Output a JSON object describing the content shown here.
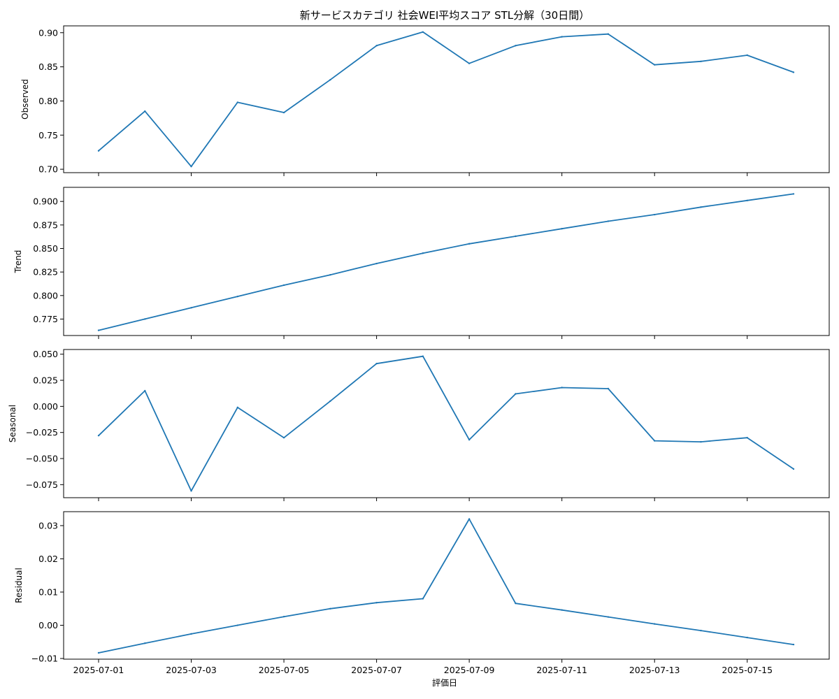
{
  "title": "新サービスカテゴリ 社会WEI平均スコア STL分解（30日間）",
  "xlabel": "評価日",
  "line_color": "#1f77b4",
  "chart_data": {
    "type": "line",
    "title": "新サービスカテゴリ 社会WEI平均スコア STL分解（30日間）",
    "xlabel": "評価日",
    "x": [
      "2025-07-01",
      "2025-07-02",
      "2025-07-03",
      "2025-07-04",
      "2025-07-05",
      "2025-07-06",
      "2025-07-07",
      "2025-07-08",
      "2025-07-09",
      "2025-07-10",
      "2025-07-11",
      "2025-07-12",
      "2025-07-13",
      "2025-07-14",
      "2025-07-15",
      "2025-07-16"
    ],
    "x_tick_labels": [
      "2025-07-01",
      "2025-07-03",
      "2025-07-05",
      "2025-07-07",
      "2025-07-09",
      "2025-07-11",
      "2025-07-13",
      "2025-07-15"
    ],
    "grid": false,
    "panels": [
      {
        "ylabel": "Observed",
        "ylim": [
          0.695,
          0.91
        ],
        "yticks": [
          0.7,
          0.75,
          0.8,
          0.85,
          0.9
        ],
        "ytick_labels": [
          "0.70",
          "0.75",
          "0.80",
          "0.85",
          "0.90"
        ],
        "values": [
          0.727,
          0.785,
          0.704,
          0.798,
          0.783,
          0.831,
          0.881,
          0.901,
          0.855,
          0.881,
          0.894,
          0.898,
          0.853,
          0.858,
          0.867,
          0.842
        ]
      },
      {
        "ylabel": "Trend",
        "ylim": [
          0.7575,
          0.915
        ],
        "yticks": [
          0.775,
          0.8,
          0.825,
          0.85,
          0.875,
          0.9
        ],
        "ytick_labels": [
          "0.775",
          "0.800",
          "0.825",
          "0.850",
          "0.875",
          "0.900"
        ],
        "values": [
          0.763,
          0.775,
          0.787,
          0.799,
          0.811,
          0.822,
          0.834,
          0.845,
          0.855,
          0.863,
          0.871,
          0.879,
          0.886,
          0.894,
          0.901,
          0.908
        ]
      },
      {
        "ylabel": "Seasonal",
        "ylim": [
          -0.0875,
          0.0545
        ],
        "yticks": [
          -0.075,
          -0.05,
          -0.025,
          0.0,
          0.025,
          0.05
        ],
        "ytick_labels": [
          "−0.075",
          "−0.050",
          "−0.025",
          "0.000",
          "0.025",
          "0.050"
        ],
        "values": [
          -0.028,
          0.015,
          -0.081,
          -0.001,
          -0.03,
          0.005,
          0.041,
          0.048,
          -0.032,
          0.012,
          0.018,
          0.017,
          -0.033,
          -0.034,
          -0.03,
          -0.06
        ]
      },
      {
        "ylabel": "Residual",
        "ylim": [
          -0.0102,
          0.0342
        ],
        "yticks": [
          -0.01,
          0.0,
          0.01,
          0.02,
          0.03
        ],
        "ytick_labels": [
          "−0.01",
          "0.00",
          "0.01",
          "0.02",
          "0.03"
        ],
        "values": [
          -0.0083,
          -0.0054,
          -0.0026,
          0.0,
          0.0026,
          0.005,
          0.0068,
          0.008,
          0.032,
          0.0066,
          0.0046,
          0.0025,
          0.0004,
          -0.0016,
          -0.0037,
          -0.0058
        ]
      }
    ]
  }
}
